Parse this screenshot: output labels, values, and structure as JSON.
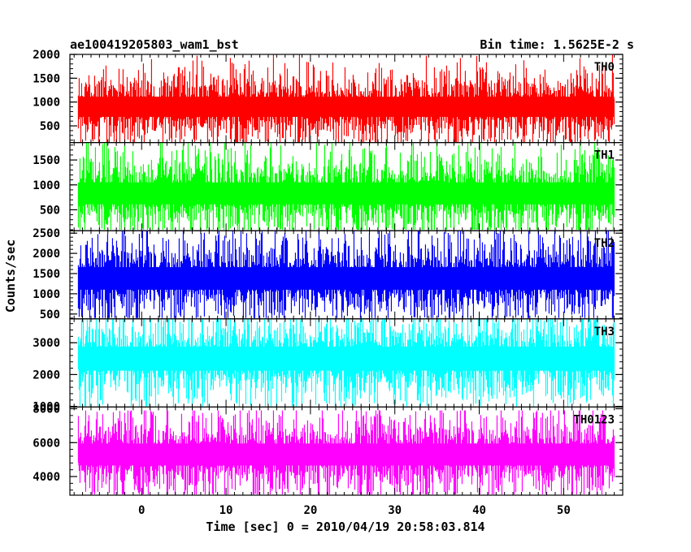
{
  "chart_data": {
    "type": "line",
    "title": "ae100419205803_wam1_bst",
    "subtitle": "Bin time: 1.5625E-2 s",
    "xlabel": "Time [sec] 0 = 2010/04/19 20:58:03.814",
    "ylabel": "Counts/sec",
    "xlim": [
      -8.5,
      57
    ],
    "x_ticks": [
      "0",
      "10",
      "20",
      "30",
      "40",
      "50"
    ],
    "x_tick_values": [
      0,
      10,
      20,
      30,
      40,
      50
    ],
    "data_x_range": [
      -7.5,
      56
    ],
    "grid": false,
    "panels": [
      {
        "name": "TH0",
        "color": "#ff0000",
        "ylim": [
          150,
          2000
        ],
        "yticks": [
          "500",
          "1000",
          "1500",
          "2000"
        ],
        "ytick_values": [
          500,
          1000,
          1500,
          2000
        ],
        "mean": 900,
        "sd": 235,
        "max": 2000,
        "min": 150
      },
      {
        "name": "TH1",
        "color": "#00ff00",
        "ylim": [
          80,
          1850
        ],
        "yticks": [
          "500",
          "1000",
          "1500"
        ],
        "ytick_values": [
          500,
          1000,
          1500
        ],
        "mean": 830,
        "sd": 245,
        "max": 1850,
        "min": 100
      },
      {
        "name": "TH2",
        "color": "#0000ff",
        "ylim": [
          380,
          2560
        ],
        "yticks": [
          "500",
          "1000",
          "1500",
          "2000",
          "2500"
        ],
        "ytick_values": [
          500,
          1000,
          1500,
          2000,
          2500
        ],
        "mean": 1380,
        "sd": 310,
        "max": 2560,
        "min": 400
      },
      {
        "name": "TH3",
        "color": "#00ffff",
        "ylim": [
          980,
          3750
        ],
        "yticks": [
          "1000",
          "2000",
          "3000"
        ],
        "ytick_values": [
          1000,
          2000,
          3000
        ],
        "mean": 2500,
        "sd": 420,
        "max": 3750,
        "min": 1000
      },
      {
        "name": "TH0123",
        "color": "#ff00ff",
        "ylim": [
          2900,
          8100
        ],
        "yticks": [
          "4000",
          "6000",
          "8000"
        ],
        "ytick_values": [
          4000,
          6000,
          8000
        ],
        "mean": 5300,
        "sd": 720,
        "max": 7900,
        "min": 2950
      }
    ]
  }
}
